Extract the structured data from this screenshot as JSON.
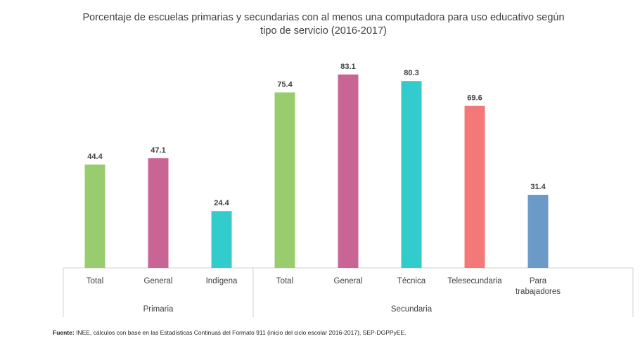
{
  "title": {
    "line1": "Porcentaje de escuelas primarias y secundarias con al menos una computadora para uso educativo según",
    "line2": "tipo de servicio (2016-2017)"
  },
  "source": {
    "label": "Fuente:",
    "text": " INEE, cálculos con base en las Estadísticas Continuas del Formato 911 (inicio del ciclo escolar 2016-2017), SEP-DGPPyEE."
  },
  "chart_data": {
    "type": "bar",
    "groups": [
      {
        "name": "Primaria",
        "categories": [
          "Total",
          "General",
          "Indígena"
        ],
        "values": [
          44.4,
          47.1,
          24.4
        ],
        "colors": [
          "#99cc6e",
          "#c86595",
          "#33cccc"
        ]
      },
      {
        "name": "Secundaria",
        "categories": [
          "Total",
          "General",
          "Técnica",
          "Telesecundaria",
          "Para trabajadores"
        ],
        "values": [
          75.4,
          83.1,
          80.3,
          69.6,
          31.4
        ],
        "colors": [
          "#99cc6e",
          "#c86595",
          "#33cccc",
          "#f47878",
          "#6b9ac8"
        ]
      }
    ],
    "ylim": [
      0,
      100
    ],
    "data_labels": true,
    "grid": false,
    "legend": "none"
  }
}
